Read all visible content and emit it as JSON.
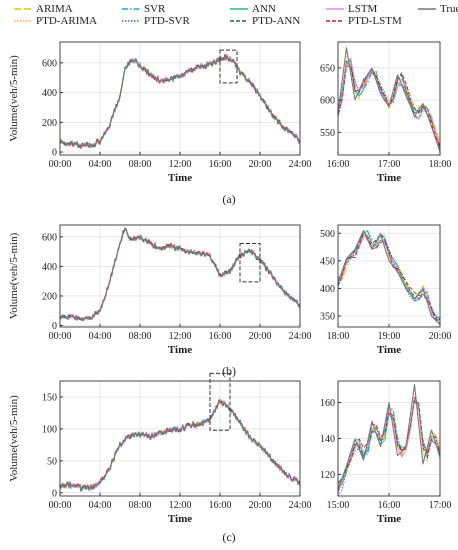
{
  "legend": [
    {
      "name": "ARIMA",
      "color": "#e6c200",
      "dash": "7,3"
    },
    {
      "name": "PTD-ARIMA",
      "color": "#f2a33a",
      "dash": "1.5,1.5"
    },
    {
      "name": "SVR",
      "color": "#1aa7d6",
      "dash": "6,2,1.5,2"
    },
    {
      "name": "PTD-SVR",
      "color": "#3b5bdb",
      "dash": "1.5,1.5"
    },
    {
      "name": "ANN",
      "color": "#22c08a",
      "dash": ""
    },
    {
      "name": "PTD-ANN",
      "color": "#1e6e3a",
      "dash": "4,2"
    },
    {
      "name": "LSTM",
      "color": "#ee82ee",
      "dash": ""
    },
    {
      "name": "PTD-LSTM",
      "color": "#cc2222",
      "dash": "4,2"
    },
    {
      "name": "True",
      "color": "#777777",
      "dash": ""
    }
  ],
  "chart_data": [
    {
      "type": "line",
      "panel": "a",
      "label": "(a)",
      "view": "full",
      "ylabel": "Volume(veh/5-min)",
      "xlabel": "Time",
      "xlim": [
        0,
        24
      ],
      "ylim": [
        -20,
        740
      ],
      "xticks": [
        "00:00",
        "04:00",
        "08:00",
        "12:00",
        "16:00",
        "20:00",
        "24:00"
      ],
      "yticks": [
        0,
        200,
        400,
        600
      ],
      "highlight": {
        "x": [
          16,
          17.7
        ],
        "y": [
          465,
          685
        ]
      },
      "true": {
        "x": [
          1,
          2,
          3,
          4,
          5,
          6,
          6.5,
          7,
          7.5,
          8,
          9,
          10,
          11,
          12,
          13,
          14,
          15,
          16,
          16.5,
          17,
          17.5,
          18,
          19,
          20,
          21,
          22,
          23,
          24
        ],
        "y": [
          60,
          45,
          45,
          70,
          180,
          380,
          560,
          610,
          620,
          580,
          520,
          480,
          490,
          510,
          550,
          570,
          590,
          620,
          640,
          630,
          600,
          530,
          470,
          380,
          270,
          190,
          130,
          80
        ]
      }
    },
    {
      "type": "line",
      "panel": "a",
      "view": "zoom",
      "xlabel": "Time",
      "xlim": [
        16,
        18
      ],
      "ylim": [
        515,
        690
      ],
      "xticks": [
        "16:00",
        "17:00",
        "18:00"
      ],
      "yticks": [
        550,
        600,
        650
      ],
      "true": {
        "x": [
          16,
          16.17,
          16.33,
          16.5,
          16.67,
          16.83,
          17,
          17.17,
          17.33,
          17.5,
          17.67,
          17.83,
          18
        ],
        "y": [
          580,
          683,
          600,
          630,
          650,
          610,
          590,
          640,
          610,
          575,
          595,
          560,
          520
        ]
      }
    },
    {
      "type": "line",
      "panel": "b",
      "label": "(b)",
      "view": "full",
      "ylabel": "Volume(veh/5-min)",
      "xlabel": "Time",
      "xlim": [
        0,
        24
      ],
      "ylim": [
        -10,
        680
      ],
      "xticks": [
        "00:00",
        "04:00",
        "08:00",
        "12:00",
        "16:00",
        "20:00",
        "24:00"
      ],
      "yticks": [
        0,
        200,
        400,
        600
      ],
      "highlight": {
        "x": [
          18,
          20
        ],
        "y": [
          295,
          555
        ]
      },
      "true": {
        "x": [
          1,
          2,
          3,
          4,
          5,
          6,
          6.5,
          7,
          8,
          9,
          10,
          11,
          12,
          13,
          14,
          15,
          16,
          17,
          18,
          19,
          20,
          21,
          22,
          23,
          24
        ],
        "y": [
          60,
          45,
          50,
          100,
          300,
          560,
          660,
          590,
          600,
          560,
          520,
          540,
          520,
          500,
          490,
          470,
          340,
          370,
          470,
          510,
          440,
          360,
          260,
          190,
          130
        ]
      }
    },
    {
      "type": "line",
      "panel": "b",
      "view": "zoom",
      "xlabel": "Time",
      "xlim": [
        18,
        20
      ],
      "ylim": [
        330,
        515
      ],
      "xticks": [
        "18:00",
        "19:00",
        "20:00"
      ],
      "yticks": [
        350,
        400,
        450,
        500
      ],
      "true": {
        "x": [
          18,
          18.17,
          18.33,
          18.5,
          18.67,
          18.83,
          19,
          19.17,
          19.33,
          19.5,
          19.67,
          19.83,
          20
        ],
        "y": [
          410,
          455,
          470,
          505,
          470,
          500,
          450,
          430,
          400,
          380,
          400,
          350,
          335
        ]
      }
    },
    {
      "type": "line",
      "panel": "c",
      "label": "(c)",
      "view": "full",
      "ylabel": "Volume(veh/5-min)",
      "xlabel": "Time",
      "xlim": [
        0,
        24
      ],
      "ylim": [
        -5,
        175
      ],
      "xticks": [
        "00:00",
        "04:00",
        "08:00",
        "12:00",
        "16:00",
        "20:00",
        "24:00"
      ],
      "yticks": [
        0,
        50,
        100,
        150
      ],
      "highlight": {
        "x": [
          15,
          17
        ],
        "y": [
          98,
          187
        ]
      },
      "true": {
        "x": [
          1,
          2,
          3,
          4,
          5,
          6,
          7,
          8,
          9,
          10,
          11,
          12,
          13,
          14,
          15,
          16,
          17,
          18,
          19,
          20,
          21,
          22,
          23,
          24
        ],
        "y": [
          12,
          8,
          8,
          15,
          40,
          75,
          90,
          92,
          88,
          95,
          98,
          100,
          105,
          108,
          115,
          145,
          130,
          110,
          85,
          75,
          55,
          40,
          25,
          15
        ]
      }
    },
    {
      "type": "line",
      "panel": "c",
      "view": "zoom",
      "xlabel": "Time",
      "xlim": [
        15,
        17
      ],
      "ylim": [
        108,
        172
      ],
      "xticks": [
        "15:00",
        "16:00",
        "17:00"
      ],
      "yticks": [
        120,
        140,
        160
      ],
      "true": {
        "x": [
          15,
          15.17,
          15.33,
          15.5,
          15.67,
          15.83,
          16,
          16.17,
          16.33,
          16.5,
          16.67,
          16.83,
          17
        ],
        "y": [
          112,
          125,
          140,
          128,
          150,
          135,
          160,
          130,
          135,
          170,
          125,
          145,
          130
        ]
      }
    }
  ]
}
